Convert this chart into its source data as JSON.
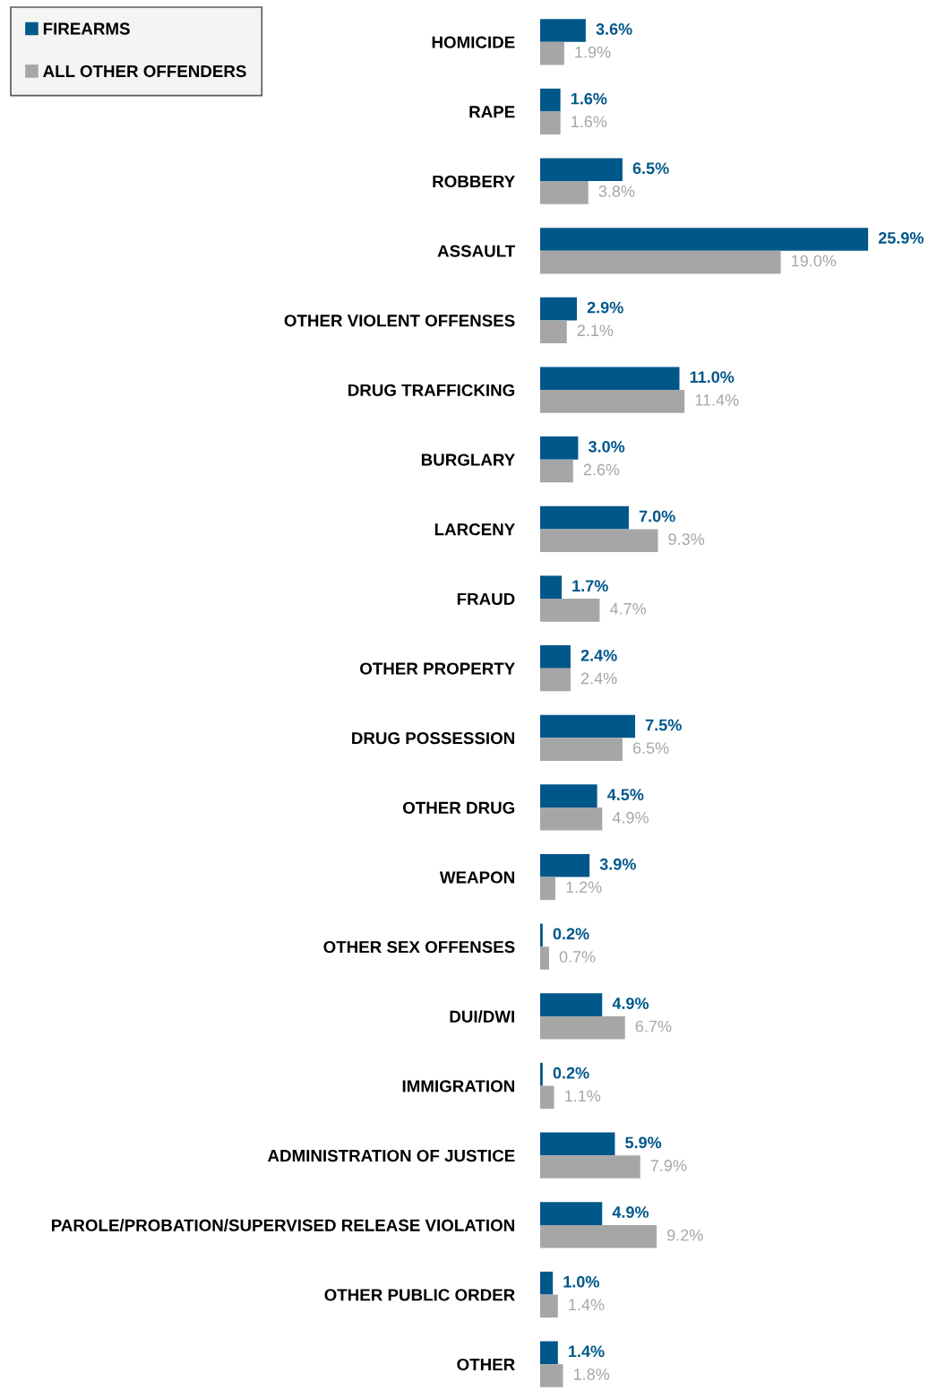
{
  "chart_data": {
    "type": "bar",
    "orientation": "horizontal",
    "data_labels": true,
    "legend": "top left",
    "grid": false,
    "tick_labels": "y",
    "categories": [
      "HOMICIDE",
      "RAPE",
      "ROBBERY",
      "ASSAULT",
      "OTHER VIOLENT OFFENSES",
      "DRUG TRAFFICKING",
      "BURGLARY",
      "LARCENY",
      "FRAUD",
      "OTHER PROPERTY",
      "DRUG POSSESSION",
      "OTHER DRUG",
      "WEAPON",
      "OTHER SEX OFFENSES",
      "DUI/DWI",
      "IMMIGRATION",
      "ADMINISTRATION OF JUSTICE",
      "PAROLE/PROBATION/SUPERVISED RELEASE VIOLATION",
      "OTHER PUBLIC ORDER",
      "OTHER"
    ],
    "series": [
      {
        "name": "FIREARMS",
        "color": "#00578a",
        "values": [
          3.6,
          1.6,
          6.5,
          25.9,
          2.9,
          11.0,
          3.0,
          7.0,
          1.7,
          2.4,
          7.5,
          4.5,
          3.9,
          0.2,
          4.9,
          0.2,
          5.9,
          4.9,
          1.0,
          1.4
        ],
        "value_labels": [
          "3.6%",
          "1.6%",
          "6.5%",
          "25.9%",
          "2.9%",
          "11.0%",
          "3.0%",
          "7.0%",
          "1.7%",
          "2.4%",
          "7.5%",
          "4.5%",
          "3.9%",
          "0.2%",
          "4.9%",
          "0.2%",
          "5.9%",
          "4.9%",
          "1.0%",
          "1.4%"
        ]
      },
      {
        "name": "ALL OTHER OFFENDERS",
        "color": "#a6a6a6",
        "values": [
          1.9,
          1.6,
          3.8,
          19.0,
          2.1,
          11.4,
          2.6,
          9.3,
          4.7,
          2.4,
          6.5,
          4.9,
          1.2,
          0.7,
          6.7,
          1.1,
          7.9,
          9.2,
          1.4,
          1.8
        ],
        "value_labels": [
          "1.9%",
          "1.6%",
          "3.8%",
          "19.0%",
          "2.1%",
          "11.4%",
          "2.6%",
          "9.3%",
          "4.7%",
          "2.4%",
          "6.5%",
          "4.9%",
          "1.2%",
          "0.7%",
          "6.7%",
          "1.1%",
          "7.9%",
          "9.2%",
          "1.4%",
          "1.8%"
        ]
      }
    ]
  }
}
